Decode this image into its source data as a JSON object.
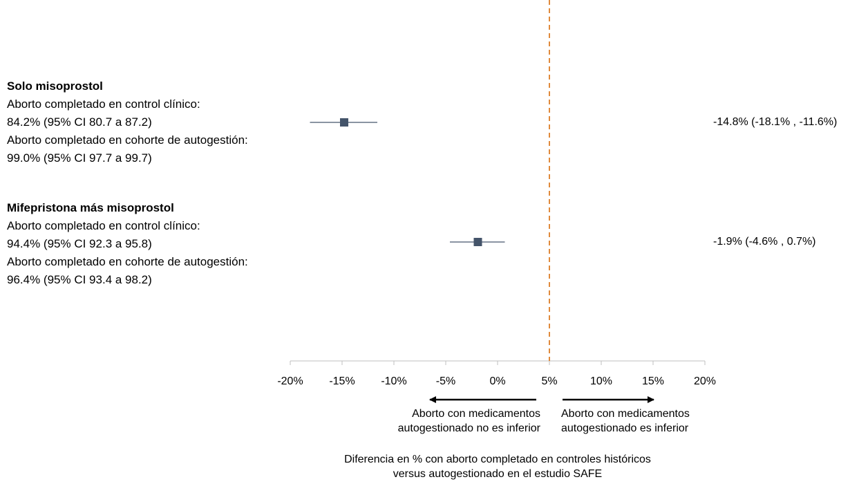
{
  "chart_data": {
    "type": "forest",
    "title": "",
    "xlabel": [
      "Diferencia en % con aborto completado en controles históricos",
      "versus autogestionado en el estudio SAFE"
    ],
    "xlim": [
      -20,
      20
    ],
    "x_ticks": [
      -20,
      -15,
      -10,
      -5,
      0,
      5,
      10,
      15,
      20
    ],
    "x_tick_labels": [
      "-20%",
      "-15%",
      "-10%",
      "-5%",
      "0%",
      "5%",
      "10%",
      "15%",
      "20%"
    ],
    "reference_line": {
      "x": 5,
      "style": "dashed",
      "color": "#e08a3c"
    },
    "marker_color": "#44546a",
    "groups": [
      {
        "heading": "Solo misoprostol",
        "lines": [
          "Aborto completado en control clínico:",
          "84.2% (95% CI 80.7 a 87.2)",
          "Aborto completado en cohorte de autogestión:",
          "99.0% (95% CI 97.7 a 99.7)"
        ],
        "estimate": -14.8,
        "ci_low": -18.1,
        "ci_high": -11.6,
        "effect_text": "-14.8% (-18.1% , -11.6%)"
      },
      {
        "heading": "Mifepristona más misoprostol",
        "lines": [
          "Aborto completado en control clínico:",
          "94.4% (95% CI 92.3 a 95.8)",
          "Aborto completado en cohorte de autogestión:",
          "96.4% (95% CI 93.4 a 98.2)"
        ],
        "estimate": -1.9,
        "ci_low": -4.6,
        "ci_high": 0.7,
        "effect_text": "-1.9% (-4.6% , 0.7%)"
      }
    ],
    "direction_notes": {
      "left": [
        "Aborto con medicamentos",
        "autogestionado no es inferior"
      ],
      "right": [
        "Aborto con medicamentos",
        "autogestionado es inferior"
      ]
    }
  }
}
